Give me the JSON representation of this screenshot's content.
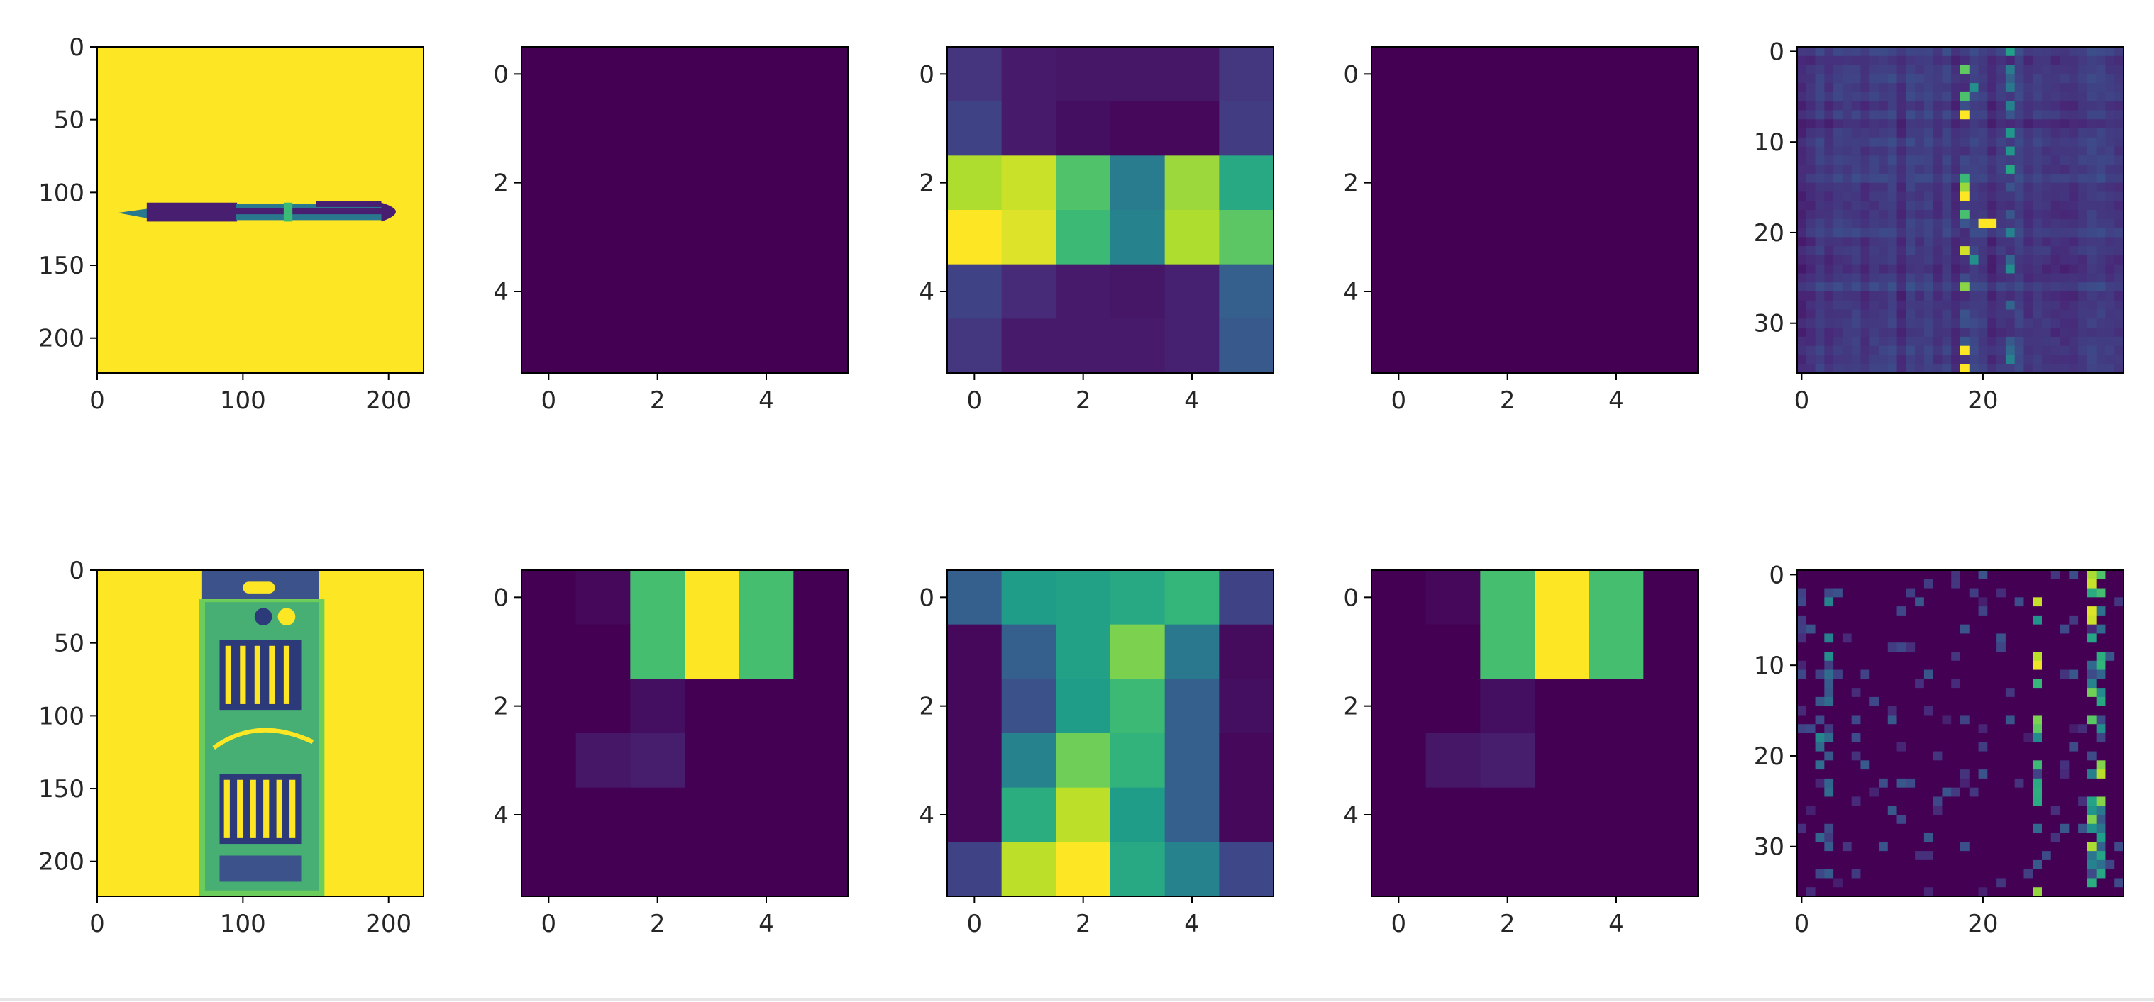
{
  "colors": {
    "viridis": [
      "#440154",
      "#482878",
      "#3e4989",
      "#31688e",
      "#26828e",
      "#1f9e89",
      "#35b779",
      "#6ece58",
      "#b5de2b",
      "#fde725"
    ]
  },
  "chart_data": [
    {
      "type": "image",
      "row": 0,
      "col": 0,
      "content": "grayscale photo: pen on white background",
      "xlim": [
        0,
        224
      ],
      "ylim": [
        224,
        0
      ],
      "xticks": [
        {
          "v": 0,
          "l": "0"
        },
        {
          "v": 100,
          "l": "100"
        },
        {
          "v": 200,
          "l": "200"
        }
      ],
      "yticks": [
        {
          "v": 0,
          "l": "0"
        },
        {
          "v": 50,
          "l": "50"
        },
        {
          "v": 100,
          "l": "100"
        },
        {
          "v": 150,
          "l": "150"
        },
        {
          "v": 200,
          "l": "200"
        }
      ]
    },
    {
      "type": "heatmap",
      "row": 0,
      "col": 1,
      "xlim": [
        -0.5,
        5.5
      ],
      "ylim": [
        5.5,
        -0.5
      ],
      "xticks": [
        {
          "v": 0,
          "l": "0"
        },
        {
          "v": 2,
          "l": "2"
        },
        {
          "v": 4,
          "l": "4"
        }
      ],
      "yticks": [
        {
          "v": 0,
          "l": "0"
        },
        {
          "v": 2,
          "l": "2"
        },
        {
          "v": 4,
          "l": "4"
        }
      ],
      "values": [
        [
          0,
          0,
          0,
          0,
          0,
          0
        ],
        [
          0,
          0,
          0,
          0,
          0,
          0
        ],
        [
          0,
          0,
          0,
          0,
          0,
          0
        ],
        [
          0,
          0,
          0,
          0,
          0,
          0
        ],
        [
          0,
          0,
          0,
          0,
          0,
          0
        ],
        [
          0,
          0,
          0,
          0,
          0,
          0
        ]
      ]
    },
    {
      "type": "heatmap",
      "row": 0,
      "col": 2,
      "xlim": [
        -0.5,
        5.5
      ],
      "ylim": [
        5.5,
        -0.5
      ],
      "xticks": [
        {
          "v": 0,
          "l": "0"
        },
        {
          "v": 2,
          "l": "2"
        },
        {
          "v": 4,
          "l": "4"
        }
      ],
      "yticks": [
        {
          "v": 0,
          "l": "0"
        },
        {
          "v": 2,
          "l": "2"
        },
        {
          "v": 4,
          "l": "4"
        }
      ],
      "values": [
        [
          0.15,
          0.07,
          0.06,
          0.06,
          0.06,
          0.16
        ],
        [
          0.2,
          0.07,
          0.04,
          0.02,
          0.02,
          0.18
        ],
        [
          0.88,
          0.92,
          0.72,
          0.42,
          0.85,
          0.6
        ],
        [
          1.0,
          0.95,
          0.68,
          0.45,
          0.88,
          0.74
        ],
        [
          0.2,
          0.12,
          0.07,
          0.06,
          0.09,
          0.3
        ],
        [
          0.16,
          0.07,
          0.07,
          0.07,
          0.09,
          0.28
        ]
      ]
    },
    {
      "type": "heatmap",
      "row": 0,
      "col": 3,
      "xlim": [
        -0.5,
        5.5
      ],
      "ylim": [
        5.5,
        -0.5
      ],
      "xticks": [
        {
          "v": 0,
          "l": "0"
        },
        {
          "v": 2,
          "l": "2"
        },
        {
          "v": 4,
          "l": "4"
        }
      ],
      "yticks": [
        {
          "v": 0,
          "l": "0"
        },
        {
          "v": 2,
          "l": "2"
        },
        {
          "v": 4,
          "l": "4"
        }
      ],
      "values": [
        [
          0,
          0,
          0,
          0,
          0,
          0
        ],
        [
          0,
          0,
          0,
          0,
          0,
          0
        ],
        [
          0,
          0,
          0,
          0,
          0,
          0
        ],
        [
          0,
          0,
          0,
          0,
          0,
          0
        ],
        [
          0,
          0,
          0,
          0,
          0,
          0
        ],
        [
          0,
          0,
          0,
          0,
          0,
          0
        ]
      ]
    },
    {
      "type": "heatmap-noise",
      "row": 0,
      "col": 4,
      "n": 36,
      "xlim": [
        -0.5,
        35.5
      ],
      "ylim": [
        35.5,
        -0.5
      ],
      "xticks": [
        {
          "v": 0,
          "l": "0"
        },
        {
          "v": 20,
          "l": "20"
        }
      ],
      "yticks": [
        {
          "v": 0,
          "l": "0"
        },
        {
          "v": 10,
          "l": "10"
        },
        {
          "v": 20,
          "l": "20"
        },
        {
          "v": 30,
          "l": "30"
        }
      ],
      "base": 0.1
    },
    {
      "type": "image",
      "row": 1,
      "col": 0,
      "content": "grayscale photo: Sheaffer calligraphy pen set package",
      "xlim": [
        0,
        224
      ],
      "ylim": [
        224,
        0
      ],
      "xticks": [
        {
          "v": 0,
          "l": "0"
        },
        {
          "v": 100,
          "l": "100"
        },
        {
          "v": 200,
          "l": "200"
        }
      ],
      "yticks": [
        {
          "v": 0,
          "l": "0"
        },
        {
          "v": 50,
          "l": "50"
        },
        {
          "v": 100,
          "l": "100"
        },
        {
          "v": 150,
          "l": "150"
        },
        {
          "v": 200,
          "l": "200"
        }
      ]
    },
    {
      "type": "heatmap",
      "row": 1,
      "col": 1,
      "xlim": [
        -0.5,
        5.5
      ],
      "ylim": [
        5.5,
        -0.5
      ],
      "xticks": [
        {
          "v": 0,
          "l": "0"
        },
        {
          "v": 2,
          "l": "2"
        },
        {
          "v": 4,
          "l": "4"
        }
      ],
      "yticks": [
        {
          "v": 0,
          "l": "0"
        },
        {
          "v": 2,
          "l": "2"
        },
        {
          "v": 4,
          "l": "4"
        }
      ],
      "values": [
        [
          0,
          0.02,
          0.7,
          1.0,
          0.7,
          0
        ],
        [
          0,
          0,
          0.7,
          1.0,
          0.7,
          0
        ],
        [
          0,
          0,
          0.04,
          0,
          0,
          0
        ],
        [
          0,
          0.06,
          0.08,
          0,
          0,
          0
        ],
        [
          0,
          0,
          0,
          0,
          0,
          0
        ],
        [
          0,
          0,
          0,
          0,
          0,
          0
        ]
      ]
    },
    {
      "type": "heatmap",
      "row": 1,
      "col": 2,
      "xlim": [
        -0.5,
        5.5
      ],
      "ylim": [
        5.5,
        -0.5
      ],
      "xticks": [
        {
          "v": 0,
          "l": "0"
        },
        {
          "v": 2,
          "l": "2"
        },
        {
          "v": 4,
          "l": "4"
        }
      ],
      "yticks": [
        {
          "v": 0,
          "l": "0"
        },
        {
          "v": 2,
          "l": "2"
        },
        {
          "v": 4,
          "l": "4"
        }
      ],
      "values": [
        [
          0.3,
          0.55,
          0.57,
          0.6,
          0.66,
          0.2
        ],
        [
          0.02,
          0.3,
          0.57,
          0.8,
          0.4,
          0.03
        ],
        [
          0.02,
          0.25,
          0.55,
          0.68,
          0.3,
          0.04
        ],
        [
          0.02,
          0.45,
          0.78,
          0.65,
          0.3,
          0.02
        ],
        [
          0.02,
          0.62,
          0.9,
          0.55,
          0.3,
          0.02
        ],
        [
          0.2,
          0.9,
          1.0,
          0.6,
          0.45,
          0.22
        ]
      ]
    },
    {
      "type": "heatmap",
      "row": 1,
      "col": 3,
      "xlim": [
        -0.5,
        5.5
      ],
      "ylim": [
        5.5,
        -0.5
      ],
      "xticks": [
        {
          "v": 0,
          "l": "0"
        },
        {
          "v": 2,
          "l": "2"
        },
        {
          "v": 4,
          "l": "4"
        }
      ],
      "yticks": [
        {
          "v": 0,
          "l": "0"
        },
        {
          "v": 2,
          "l": "2"
        },
        {
          "v": 4,
          "l": "4"
        }
      ],
      "values": [
        [
          0,
          0.02,
          0.7,
          1.0,
          0.7,
          0
        ],
        [
          0,
          0,
          0.7,
          1.0,
          0.7,
          0
        ],
        [
          0,
          0,
          0.04,
          0,
          0,
          0
        ],
        [
          0,
          0.06,
          0.08,
          0,
          0,
          0
        ],
        [
          0,
          0,
          0,
          0,
          0,
          0
        ],
        [
          0,
          0,
          0,
          0,
          0,
          0
        ]
      ]
    },
    {
      "type": "heatmap-noise",
      "row": 1,
      "col": 4,
      "n": 36,
      "xlim": [
        -0.5,
        35.5
      ],
      "ylim": [
        35.5,
        -0.5
      ],
      "xticks": [
        {
          "v": 0,
          "l": "0"
        },
        {
          "v": 20,
          "l": "20"
        }
      ],
      "yticks": [
        {
          "v": 0,
          "l": "0"
        },
        {
          "v": 10,
          "l": "10"
        },
        {
          "v": 20,
          "l": "20"
        },
        {
          "v": 30,
          "l": "30"
        }
      ],
      "base": 0.0
    }
  ]
}
